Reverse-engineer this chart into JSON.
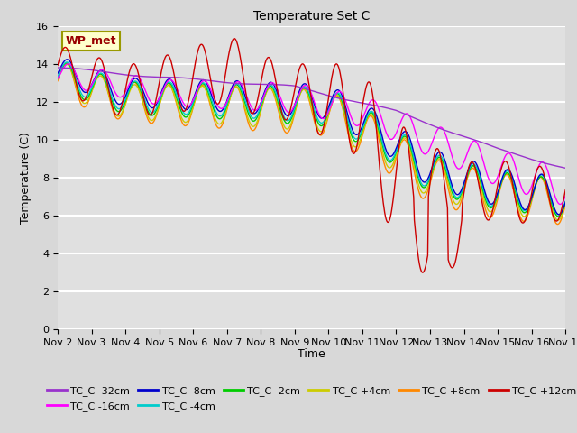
{
  "title": "Temperature Set C",
  "xlabel": "Time",
  "ylabel": "Temperature (C)",
  "ylim": [
    0,
    16
  ],
  "yticks": [
    0,
    2,
    4,
    6,
    8,
    10,
    12,
    14,
    16
  ],
  "background_color": "#d8d8d8",
  "plot_bg_color": "#e0e0e0",
  "legend_label": "WP_met",
  "series_colors": {
    "TC_C -32cm": "#9933cc",
    "TC_C -16cm": "#ff00ff",
    "TC_C -8cm": "#0000cc",
    "TC_C -4cm": "#00cccc",
    "TC_C -2cm": "#00cc00",
    "TC_C +4cm": "#cccc00",
    "TC_C +8cm": "#ff8800",
    "TC_C +12cm": "#cc0000"
  },
  "xtick_labels": [
    "Nov 2",
    "Nov 3",
    "Nov 4",
    "Nov 5",
    "Nov 6",
    "Nov 7",
    "Nov 8",
    "Nov 9",
    "Nov 10",
    "Nov 11",
    "Nov 12",
    "Nov 13",
    "Nov 14",
    "Nov 15",
    "Nov 16",
    "Nov 17"
  ],
  "n_points": 720
}
